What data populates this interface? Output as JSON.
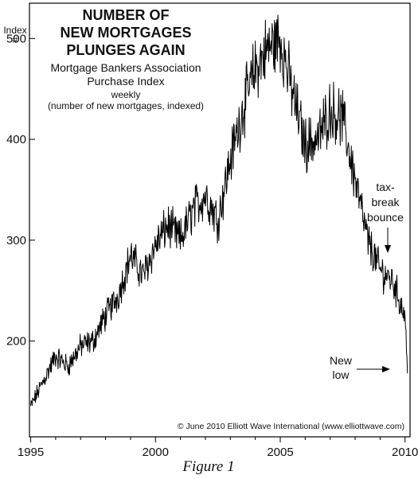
{
  "chart_data": {
    "type": "line",
    "title": [
      "NUMBER OF",
      "NEW MORTGAGES",
      "PLUNGES AGAIN"
    ],
    "subtitle": [
      "Mortgage Bankers Association",
      "Purchase Index"
    ],
    "frequency_note": "weekly",
    "description_note": "(number of new mortgages, indexed)",
    "ylabel": [
      "Index",
      "#"
    ],
    "ylim": [
      105,
      535
    ],
    "xlim": [
      1994.95,
      2010.2
    ],
    "y_ticks": [
      200,
      300,
      400,
      500
    ],
    "x_ticks": [
      1995,
      2000,
      2005,
      2010
    ],
    "grid": false,
    "x": [
      1995.0,
      1995.5,
      1996.0,
      1996.5,
      1997.0,
      1997.5,
      1998.0,
      1998.5,
      1999.0,
      1999.5,
      2000.0,
      2000.5,
      2001.0,
      2001.5,
      2002.0,
      2002.5,
      2003.0,
      2003.5,
      2004.0,
      2004.5,
      2005.0,
      2005.5,
      2006.0,
      2006.5,
      2007.0,
      2007.5,
      2008.0,
      2008.5,
      2009.0,
      2009.5,
      2010.0,
      2010.1
    ],
    "values": [
      135,
      160,
      185,
      175,
      195,
      200,
      225,
      245,
      285,
      265,
      295,
      315,
      300,
      330,
      345,
      320,
      380,
      430,
      470,
      490,
      500,
      445,
      395,
      400,
      430,
      420,
      360,
      300,
      270,
      260,
      225,
      168
    ],
    "annotations": [
      {
        "lines": [
          "tax-",
          "break",
          "bounce"
        ]
      },
      {
        "lines": [
          "New",
          "low"
        ]
      }
    ],
    "copyright": "© June 2010 Elliott Wave International (www.elliottwave.com)"
  },
  "caption": "Figure 1"
}
